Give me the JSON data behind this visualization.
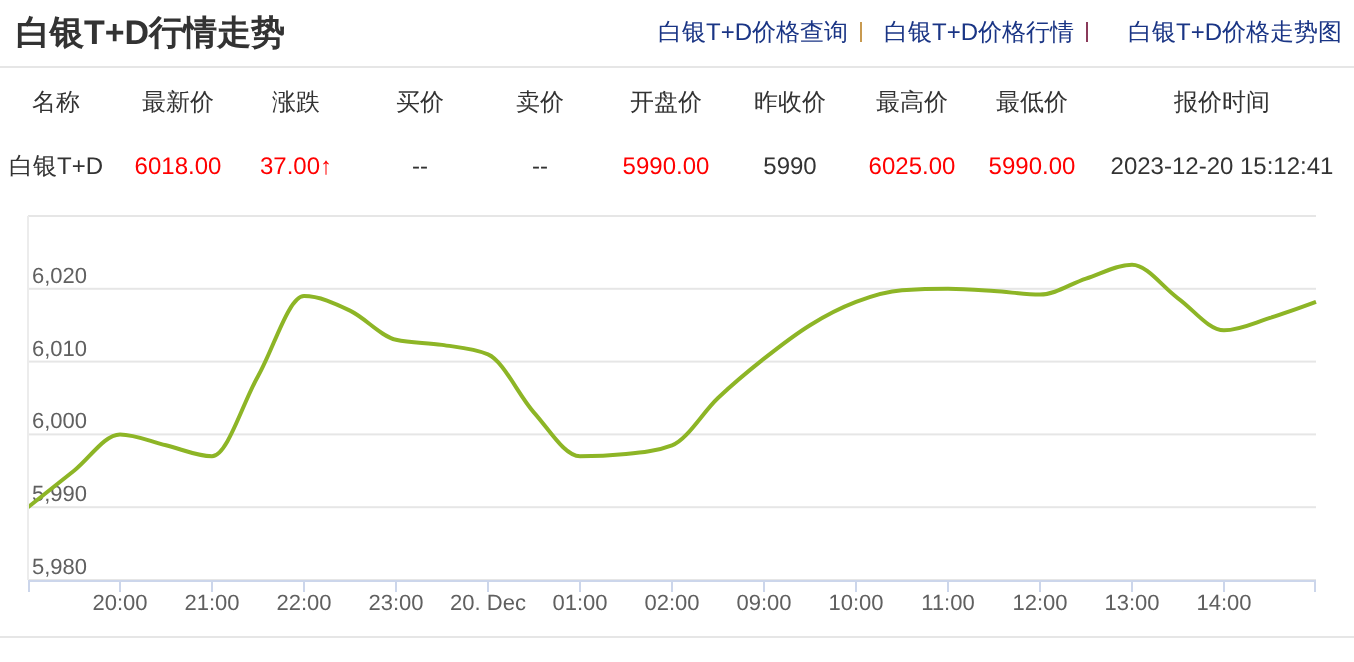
{
  "chart_data": [
    {
      "type": "other",
      "title": "白银T+D行情走势",
      "annotations": [
        "白银T+D价格查询",
        "白银T+D价格行情",
        "白银T+D价格走势图"
      ],
      "categories": [
        "名称",
        "最新价",
        "涨跌",
        "买价",
        "卖价",
        "开盘价",
        "昨收价",
        "最高价",
        "最低价",
        "报价时间"
      ],
      "value_labels": [
        "白银T+D",
        "6018.00",
        "37.00↑",
        "--",
        "--",
        "5990.00",
        "5990",
        "6025.00",
        "5990.00",
        "2023-12-20 15:12:41"
      ],
      "colors": [
        "#333333",
        "#ff0000",
        "#ff0000",
        "#333333",
        "#333333",
        "#ff0000",
        "#333333",
        "#ff0000",
        "#ff0000",
        "#333333"
      ]
    },
    {
      "type": "line",
      "categories": [
        null,
        null,
        "20:00",
        null,
        "21:00",
        null,
        "22:00",
        null,
        "23:00",
        null,
        "20. Dec",
        null,
        "01:00",
        null,
        "02:00",
        null,
        "09:00",
        null,
        "10:00",
        null,
        "11:00",
        null,
        "12:00",
        null,
        "13:00",
        null,
        "14:00",
        null,
        null
      ],
      "series": [
        {
          "color": "#8db526",
          "values": [
            5990,
            5995,
            6000,
            5998.5,
            5997,
            6008,
            6019,
            6017,
            6013,
            6012.3,
            6011,
            6003,
            5997,
            5997.3,
            5998.5,
            6005,
            6010.4,
            6015,
            6018.2,
            6019.8,
            6020,
            6019.7,
            6019.2,
            6021.4,
            6023.3,
            6018.7,
            6014.3,
            6016,
            6018.2
          ]
        }
      ],
      "ylim": [
        5980,
        6030
      ],
      "yticks": [
        {
          "value": 5980,
          "label": "5,980"
        },
        {
          "value": 5990,
          "label": "5,990"
        },
        {
          "value": 6000,
          "label": "6,000"
        },
        {
          "value": 6010,
          "label": "6,010"
        },
        {
          "value": 6020,
          "label": "6,020"
        },
        {
          "value": 6030,
          "label": null
        }
      ],
      "grid": "y",
      "marker": "none",
      "line_style": "solid"
    }
  ]
}
